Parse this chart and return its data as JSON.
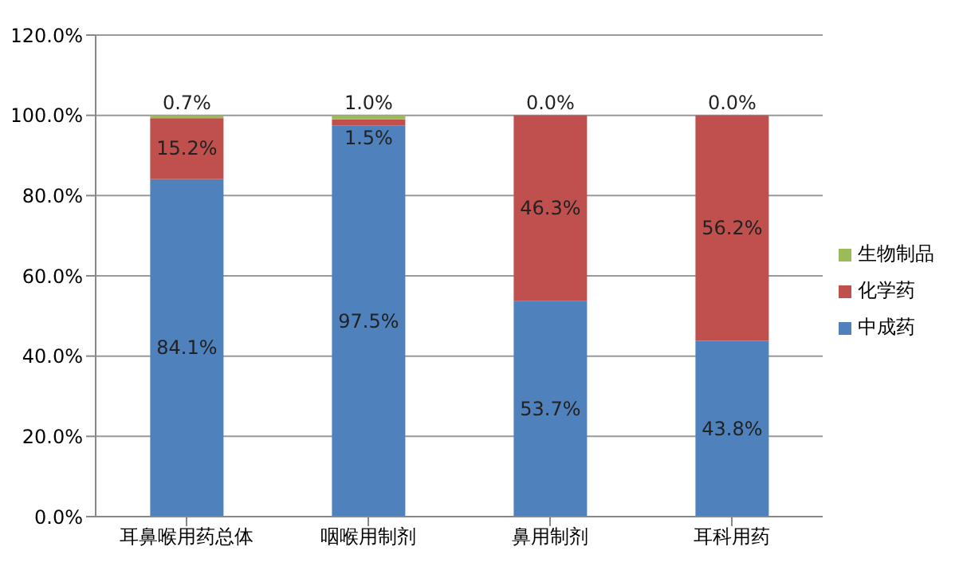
{
  "chart_data": {
    "type": "bar",
    "stacked": true,
    "categories": [
      "耳鼻喉用药总体",
      "咽喉用制剂",
      "鼻用制剂",
      "耳科用药"
    ],
    "series": [
      {
        "name": "中成药",
        "color": "#4f81bd",
        "values": [
          84.1,
          97.5,
          53.7,
          43.8
        ],
        "value_labels": [
          "84.1%",
          "97.5%",
          "53.7%",
          "43.8%"
        ]
      },
      {
        "name": "化学药",
        "color": "#c0504d",
        "values": [
          15.2,
          1.5,
          46.3,
          56.2
        ],
        "value_labels": [
          "15.2%",
          "1.5%",
          "46.3%",
          "56.2%"
        ]
      },
      {
        "name": "生物制品",
        "color": "#9bbb59",
        "values": [
          0.7,
          1.0,
          0.0,
          0.0
        ],
        "value_labels": [
          "0.7%",
          "1.0%",
          "0.0%",
          "0.0%"
        ]
      }
    ],
    "ylim": [
      0,
      120
    ],
    "yticks": [
      {
        "value": 0,
        "label": "0.0%"
      },
      {
        "value": 20,
        "label": "20.0%"
      },
      {
        "value": 40,
        "label": "40.0%"
      },
      {
        "value": 60,
        "label": "60.0%"
      },
      {
        "value": 80,
        "label": "80.0%"
      },
      {
        "value": 100,
        "label": "100.0%"
      },
      {
        "value": 120,
        "label": "120.0%"
      }
    ],
    "grid": "y",
    "legend": "right"
  }
}
